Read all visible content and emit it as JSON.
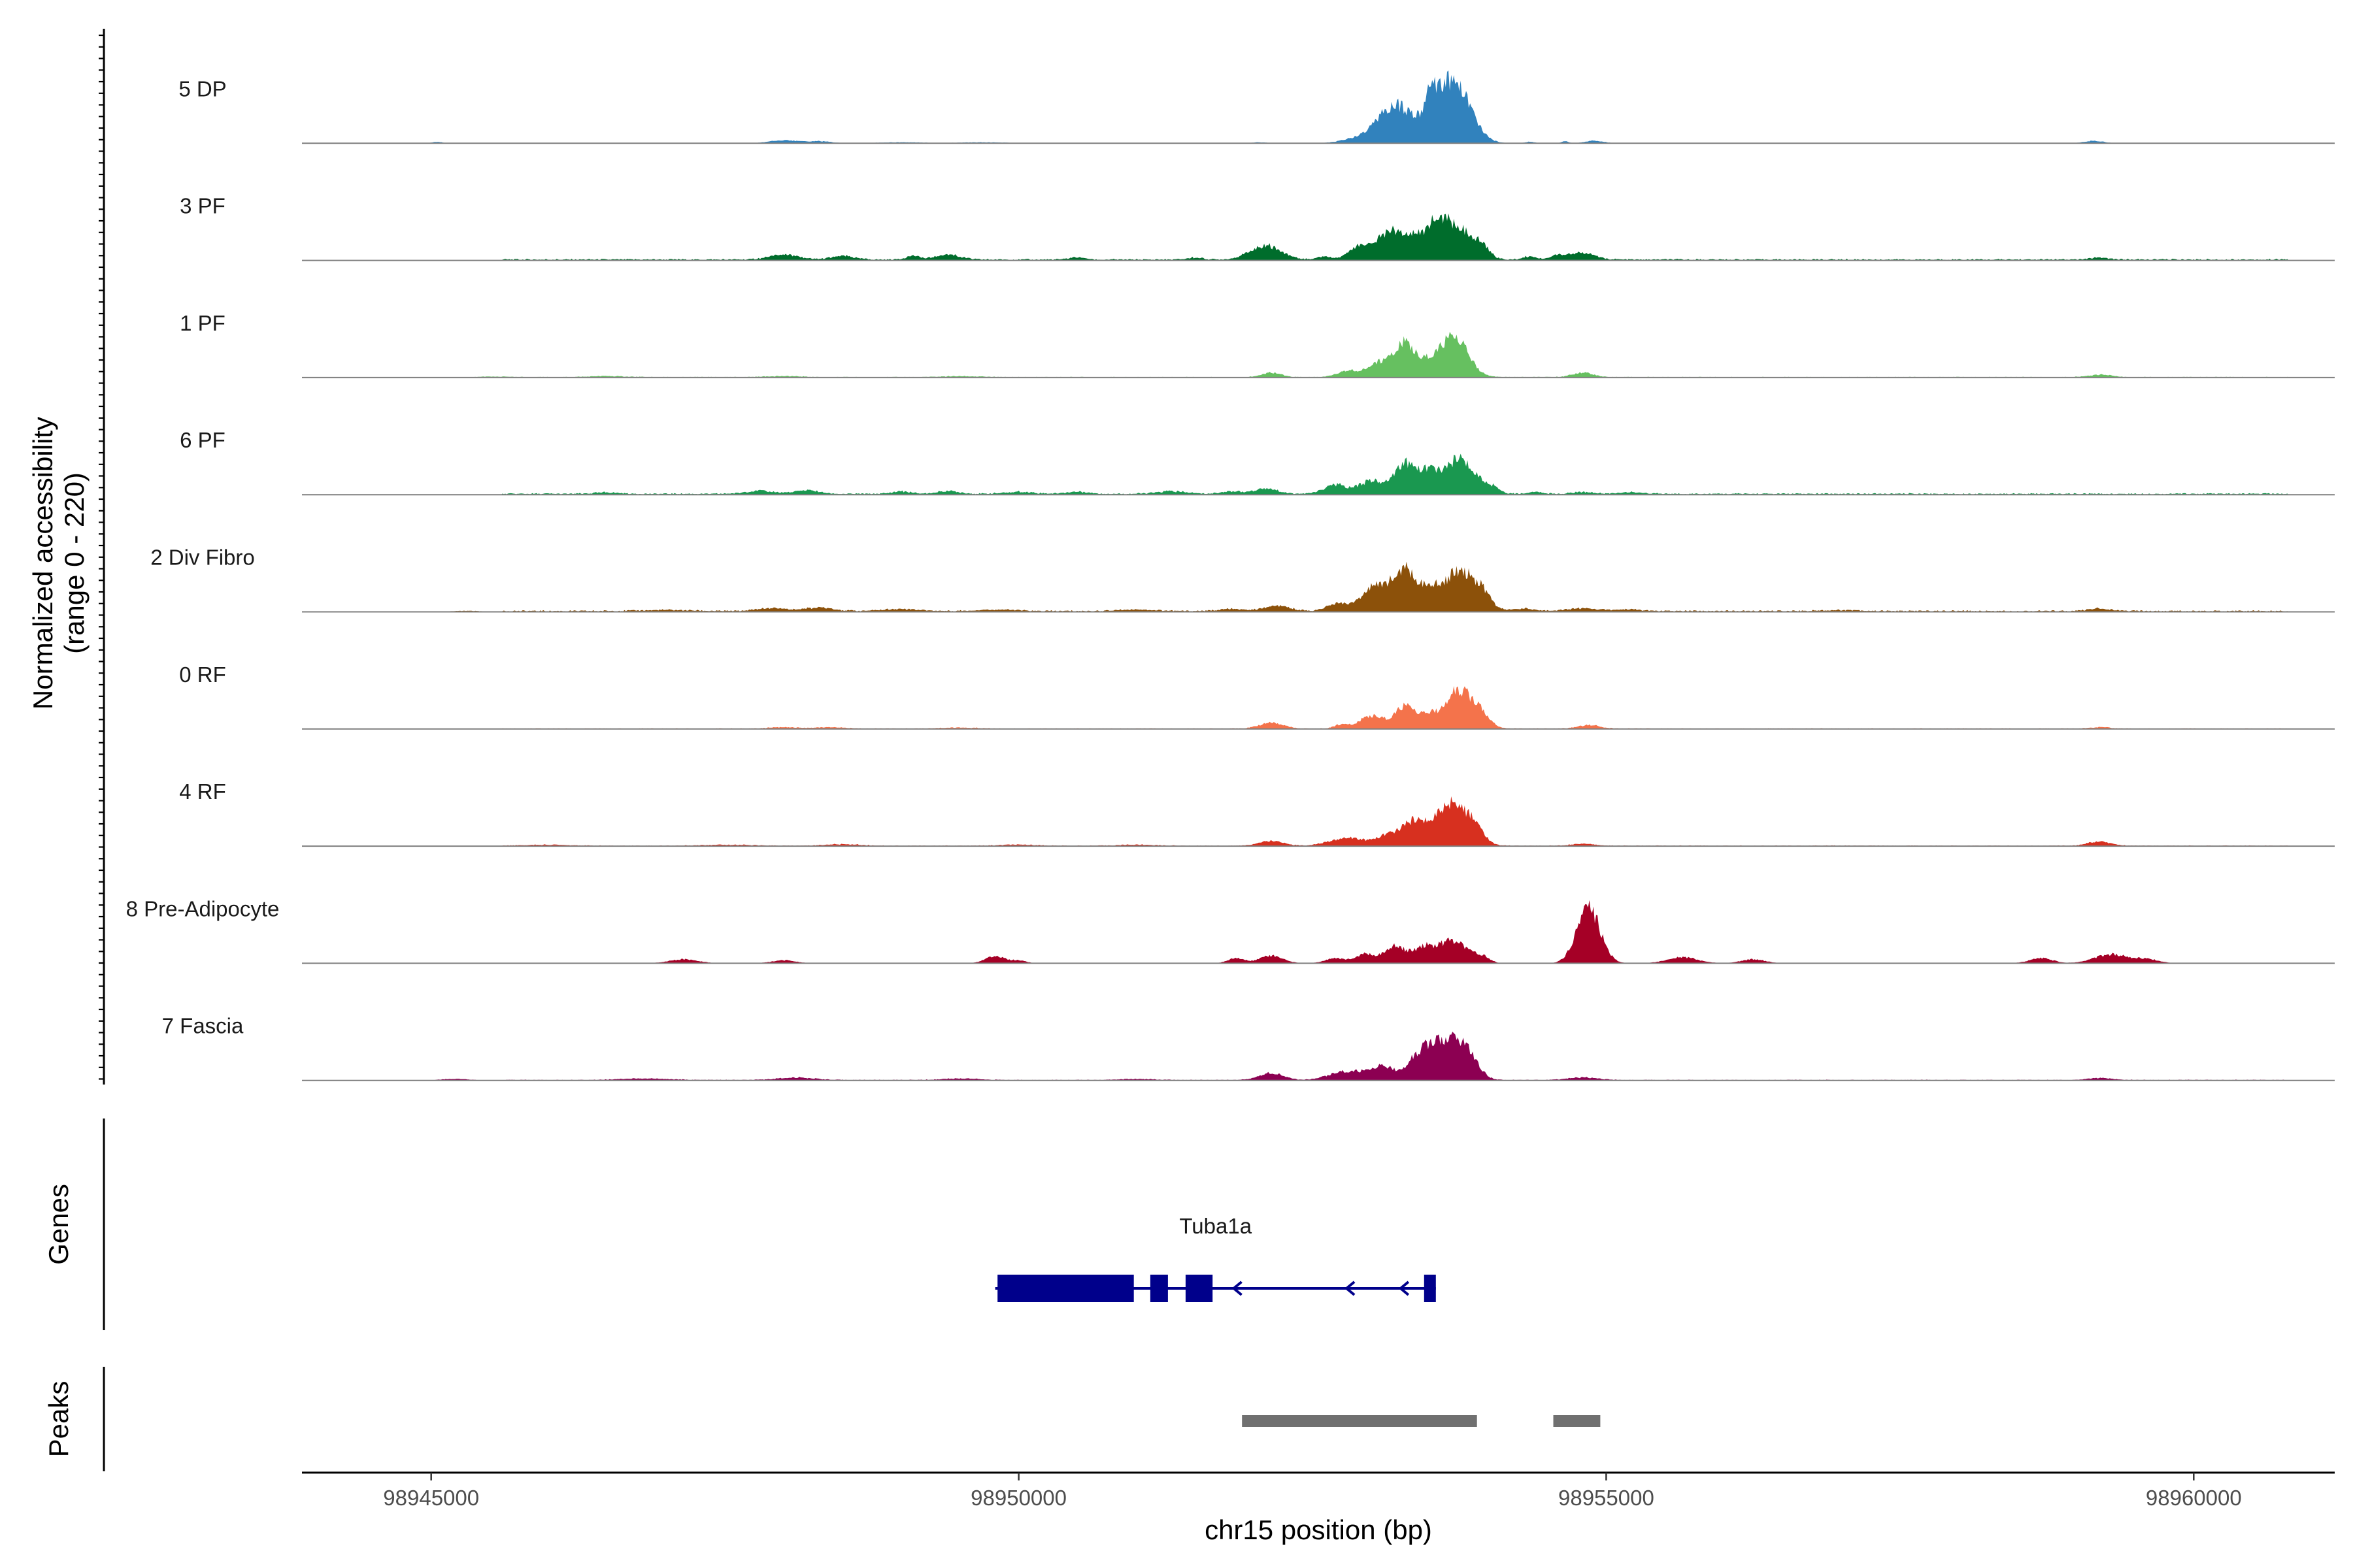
{
  "chart_data": {
    "type": "area",
    "title": "",
    "ylabel_line1": "Normalized accessibility",
    "ylabel_line2": "(range 0 - 220)",
    "yrange": [
      0,
      220
    ],
    "xlabel": "chr15 position (bp)",
    "xlim": [
      98943900,
      98961200
    ],
    "xticks": [
      98945000,
      98950000,
      98955000,
      98960000
    ],
    "xtick_labels": [
      "98945000",
      "98950000",
      "98955000",
      "98960000"
    ],
    "track_labels": {
      "genes": "Genes",
      "peaks": "Peaks"
    },
    "series": [
      {
        "name": "5 DP",
        "color": "#3182bd",
        "baseline": 0,
        "bumps": [
          [
            98945050,
            40,
            3
          ],
          [
            98948000,
            120,
            6
          ],
          [
            98948300,
            100,
            4
          ],
          [
            98949000,
            200,
            2
          ],
          [
            98949700,
            200,
            2
          ],
          [
            98952050,
            60,
            2
          ],
          [
            98952900,
            140,
            10
          ],
          [
            98953200,
            140,
            75
          ],
          [
            98953500,
            40,
            40
          ],
          [
            98953600,
            140,
            72
          ],
          [
            98953750,
            130,
            75
          ],
          [
            98954350,
            40,
            3
          ],
          [
            98954650,
            30,
            4
          ],
          [
            98954900,
            80,
            5
          ],
          [
            98959150,
            80,
            5
          ]
        ]
      },
      {
        "name": "3 PF",
        "color": "#006d2c",
        "baseline": 2,
        "bumps": [
          [
            98948000,
            120,
            10
          ],
          [
            98948500,
            100,
            7
          ],
          [
            98949100,
            60,
            7
          ],
          [
            98949400,
            100,
            10
          ],
          [
            98950500,
            60,
            5
          ],
          [
            98951500,
            60,
            4
          ],
          [
            98952100,
            130,
            28
          ],
          [
            98952600,
            60,
            6
          ],
          [
            98952900,
            90,
            25
          ],
          [
            98953150,
            110,
            50
          ],
          [
            98953350,
            100,
            35
          ],
          [
            98953550,
            90,
            65
          ],
          [
            98953750,
            120,
            62
          ],
          [
            98953950,
            60,
            20
          ],
          [
            98954350,
            60,
            6
          ],
          [
            98954600,
            70,
            8
          ],
          [
            98954800,
            100,
            14
          ],
          [
            98959200,
            80,
            4
          ]
        ]
      },
      {
        "name": "1 PF",
        "color": "#66c060",
        "baseline": 1,
        "bumps": [
          [
            98945500,
            120,
            2
          ],
          [
            98946500,
            150,
            2
          ],
          [
            98948000,
            150,
            2
          ],
          [
            98949500,
            150,
            2
          ],
          [
            98952150,
            80,
            9
          ],
          [
            98952800,
            90,
            12
          ],
          [
            98953100,
            120,
            30
          ],
          [
            98953300,
            90,
            62
          ],
          [
            98953500,
            60,
            20
          ],
          [
            98953700,
            120,
            82
          ],
          [
            98954800,
            90,
            9
          ],
          [
            98959200,
            100,
            5
          ]
        ]
      },
      {
        "name": "6 PF",
        "color": "#1a9850",
        "baseline": 2,
        "bumps": [
          [
            98946500,
            100,
            3
          ],
          [
            98947800,
            120,
            6
          ],
          [
            98948200,
            100,
            7
          ],
          [
            98949000,
            80,
            5
          ],
          [
            98949400,
            90,
            6
          ],
          [
            98950000,
            120,
            4
          ],
          [
            98950500,
            100,
            4
          ],
          [
            98951300,
            120,
            5
          ],
          [
            98951800,
            80,
            5
          ],
          [
            98952100,
            100,
            11
          ],
          [
            98952700,
            100,
            18
          ],
          [
            98953000,
            100,
            25
          ],
          [
            98953300,
            100,
            60
          ],
          [
            98953500,
            70,
            30
          ],
          [
            98953750,
            140,
            70
          ],
          [
            98954050,
            50,
            8
          ],
          [
            98954400,
            60,
            4
          ],
          [
            98954800,
            80,
            4
          ],
          [
            98955200,
            120,
            3
          ]
        ]
      },
      {
        "name": "2 Div Fibro",
        "color": "#8c510a",
        "baseline": 2,
        "bumps": [
          [
            98945300,
            150,
            2
          ],
          [
            98947000,
            200,
            2
          ],
          [
            98947900,
            120,
            6
          ],
          [
            98948300,
            120,
            7
          ],
          [
            98949000,
            150,
            4
          ],
          [
            98949800,
            150,
            3
          ],
          [
            98951000,
            150,
            3
          ],
          [
            98951800,
            100,
            4
          ],
          [
            98952200,
            110,
            10
          ],
          [
            98952700,
            80,
            14
          ],
          [
            98953050,
            130,
            50
          ],
          [
            98953300,
            100,
            75
          ],
          [
            98953500,
            70,
            30
          ],
          [
            98953750,
            140,
            80
          ],
          [
            98953950,
            70,
            20
          ],
          [
            98954300,
            80,
            5
          ],
          [
            98954800,
            150,
            5
          ],
          [
            98955200,
            100,
            3
          ],
          [
            98957000,
            150,
            2
          ],
          [
            98959200,
            80,
            5
          ]
        ]
      },
      {
        "name": "0 RF",
        "color": "#f4734b",
        "baseline": 1,
        "bumps": [
          [
            98948000,
            120,
            3
          ],
          [
            98948400,
            120,
            3
          ],
          [
            98949500,
            150,
            2
          ],
          [
            98952150,
            100,
            12
          ],
          [
            98952750,
            60,
            8
          ],
          [
            98953000,
            100,
            25
          ],
          [
            98953300,
            100,
            45
          ],
          [
            98953500,
            60,
            15
          ],
          [
            98953750,
            130,
            78
          ],
          [
            98953950,
            60,
            15
          ],
          [
            98954850,
            90,
            7
          ],
          [
            98959200,
            80,
            3
          ]
        ]
      },
      {
        "name": "4 RF",
        "color": "#d7301f",
        "baseline": 1,
        "bumps": [
          [
            98946000,
            200,
            2
          ],
          [
            98947500,
            200,
            2
          ],
          [
            98948500,
            150,
            3
          ],
          [
            98950000,
            150,
            2
          ],
          [
            98951000,
            150,
            2
          ],
          [
            98952150,
            100,
            10
          ],
          [
            98952800,
            150,
            15
          ],
          [
            98953150,
            100,
            20
          ],
          [
            98953350,
            90,
            45
          ],
          [
            98953500,
            60,
            20
          ],
          [
            98953700,
            130,
            85
          ],
          [
            98953900,
            70,
            20
          ],
          [
            98954800,
            100,
            4
          ],
          [
            98959200,
            100,
            8
          ]
        ]
      },
      {
        "name": "8 Pre-Adipocyte",
        "color": "#a50026",
        "baseline": 0,
        "bumps": [
          [
            98947150,
            120,
            8
          ],
          [
            98948000,
            100,
            6
          ],
          [
            98949800,
            80,
            15
          ],
          [
            98950000,
            60,
            6
          ],
          [
            98951850,
            70,
            10
          ],
          [
            98952150,
            100,
            15
          ],
          [
            98952700,
            90,
            10
          ],
          [
            98952950,
            80,
            18
          ],
          [
            98953200,
            90,
            35
          ],
          [
            98953450,
            90,
            30
          ],
          [
            98953700,
            120,
            45
          ],
          [
            98953950,
            60,
            12
          ],
          [
            98954850,
            100,
            110
          ],
          [
            98955650,
            130,
            12
          ],
          [
            98956250,
            100,
            8
          ],
          [
            98958700,
            100,
            10
          ],
          [
            98959300,
            140,
            18
          ],
          [
            98959600,
            100,
            8
          ]
        ]
      },
      {
        "name": "7 Fascia",
        "color": "#8c0052",
        "baseline": 1,
        "bumps": [
          [
            98945200,
            120,
            3
          ],
          [
            98946800,
            200,
            3
          ],
          [
            98948100,
            150,
            5
          ],
          [
            98949500,
            150,
            3
          ],
          [
            98951000,
            150,
            2
          ],
          [
            98952150,
            100,
            14
          ],
          [
            98952800,
            150,
            18
          ],
          [
            98953100,
            100,
            25
          ],
          [
            98953400,
            100,
            40
          ],
          [
            98953600,
            120,
            70
          ],
          [
            98953800,
            100,
            55
          ],
          [
            98954800,
            120,
            5
          ],
          [
            98959200,
            100,
            4
          ]
        ]
      }
    ],
    "gene": {
      "name": "Tuba1a",
      "strand": "-",
      "start": 98949800,
      "end": 98953550,
      "color": "#00008b",
      "exons": [
        [
          98949820,
          98950980
        ],
        [
          98951120,
          98951270
        ],
        [
          98951420,
          98951650
        ],
        [
          98953450,
          98953550
        ]
      ],
      "arrows": [
        98951830,
        98952790,
        98953250
      ]
    },
    "peaks": {
      "color": "#707070",
      "regions": [
        [
          98951900,
          98953900
        ],
        [
          98954550,
          98954950
        ]
      ]
    }
  }
}
